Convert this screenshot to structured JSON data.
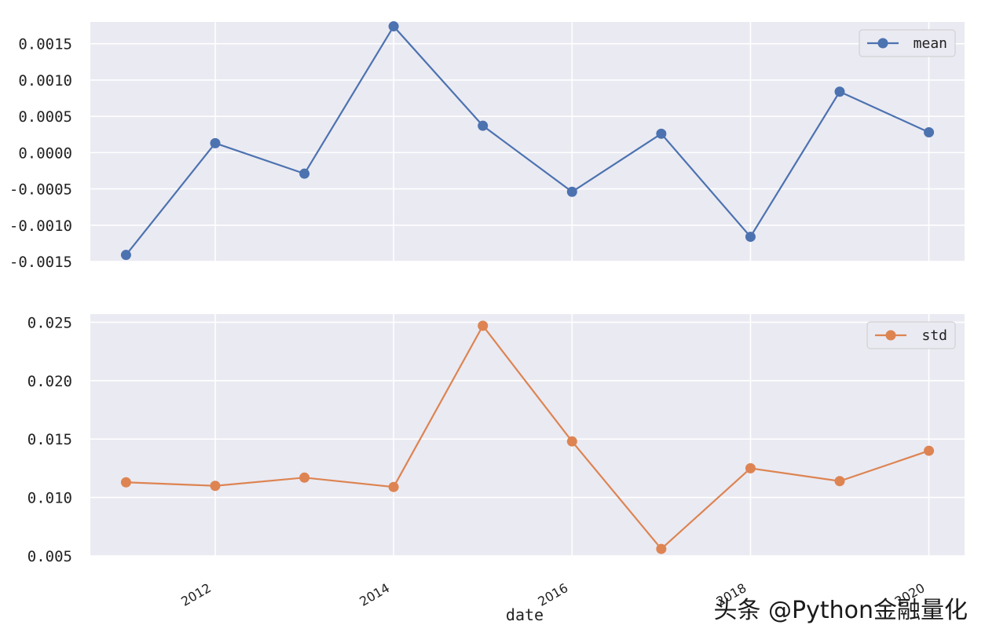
{
  "watermark": "头条 @Python金融量化",
  "chart_data": [
    {
      "type": "line",
      "x": [
        2011,
        2012,
        2013,
        2014,
        2015,
        2016,
        2017,
        2018,
        2019,
        2020
      ],
      "series": [
        {
          "name": "mean",
          "color": "#4c72b0",
          "values": [
            -0.00141,
            0.00013,
            -0.00029,
            0.00174,
            0.00037,
            -0.00054,
            0.00026,
            -0.00116,
            0.00084,
            0.00028
          ]
        }
      ],
      "ylim": [
        -0.0015,
        0.0018
      ],
      "yticks": [
        -0.0015,
        -0.001,
        -0.0005,
        0.0,
        0.0005,
        0.001,
        0.0015
      ],
      "ytick_labels": [
        "-0.0015",
        "-0.0010",
        "-0.0005",
        "0.0000",
        "0.0005",
        "0.0010",
        "0.0015"
      ],
      "grid": true,
      "legend": "top-right"
    },
    {
      "type": "line",
      "x": [
        2011,
        2012,
        2013,
        2014,
        2015,
        2016,
        2017,
        2018,
        2019,
        2020
      ],
      "series": [
        {
          "name": "std",
          "color": "#dd8452",
          "values": [
            0.0113,
            0.011,
            0.0117,
            0.0109,
            0.0247,
            0.0148,
            0.0056,
            0.0125,
            0.0114,
            0.014
          ]
        }
      ],
      "ylim": [
        0.005,
        0.0257
      ],
      "yticks": [
        0.005,
        0.01,
        0.015,
        0.02,
        0.025
      ],
      "ytick_labels": [
        "0.005",
        "0.010",
        "0.015",
        "0.020",
        "0.025"
      ],
      "grid": true,
      "legend": "top-right"
    }
  ],
  "xaxis": {
    "ticks": [
      2012,
      2014,
      2016,
      2018,
      2020
    ],
    "tick_labels": [
      "2012",
      "2014",
      "2016",
      "2018",
      "2020"
    ],
    "label": "date"
  }
}
